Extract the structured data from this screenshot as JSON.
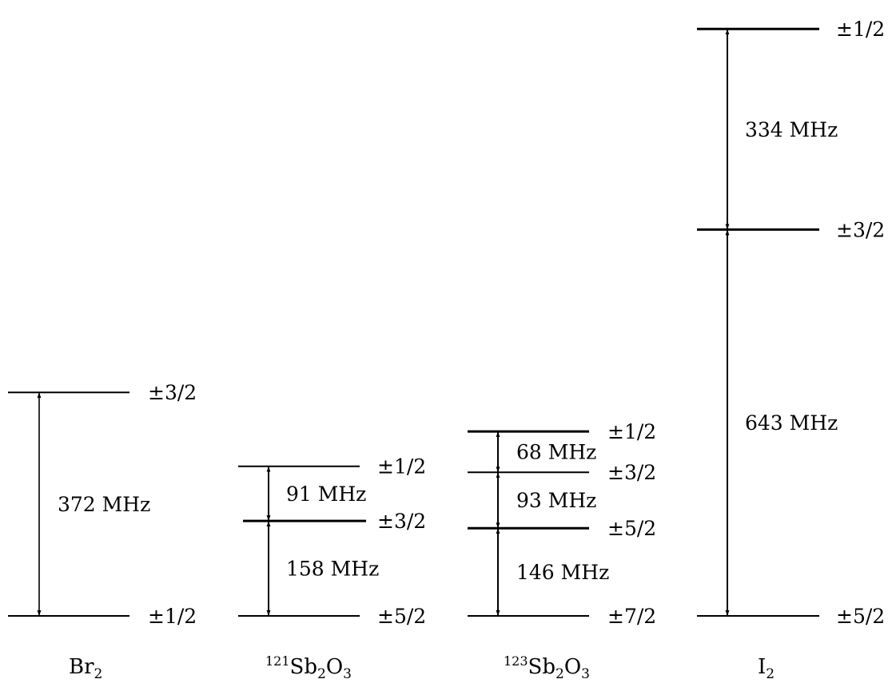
{
  "diagram": {
    "type": "nuclear-quadrupole-energy-levels",
    "unit": "MHz",
    "columns": [
      {
        "id": "br2",
        "name_parts": [
          {
            "text": "Br",
            "style": "main"
          },
          {
            "text": "2",
            "style": "sub"
          }
        ],
        "levels": [
          "±1/2",
          "±3/2"
        ],
        "transitions": [
          {
            "from": "±1/2",
            "to": "±3/2",
            "value": 372,
            "label": "372 MHz"
          }
        ]
      },
      {
        "id": "sb121",
        "name_parts": [
          {
            "text": "121",
            "style": "sup"
          },
          {
            "text": "Sb",
            "style": "main"
          },
          {
            "text": "2",
            "style": "sub"
          },
          {
            "text": "O",
            "style": "main"
          },
          {
            "text": "3",
            "style": "sub"
          }
        ],
        "levels": [
          "±5/2",
          "±3/2",
          "±1/2"
        ],
        "transitions": [
          {
            "from": "±5/2",
            "to": "±3/2",
            "value": 158,
            "label": "158 MHz"
          },
          {
            "from": "±3/2",
            "to": "±1/2",
            "value": 91,
            "label": "91 MHz"
          }
        ]
      },
      {
        "id": "sb123",
        "name_parts": [
          {
            "text": "123",
            "style": "sup"
          },
          {
            "text": "Sb",
            "style": "main"
          },
          {
            "text": "2",
            "style": "sub"
          },
          {
            "text": "O",
            "style": "main"
          },
          {
            "text": "3",
            "style": "sub"
          }
        ],
        "levels": [
          "±7/2",
          "±5/2",
          "±3/2",
          "±1/2"
        ],
        "transitions": [
          {
            "from": "±7/2",
            "to": "±5/2",
            "value": 146,
            "label": "146 MHz"
          },
          {
            "from": "±5/2",
            "to": "±3/2",
            "value": 93,
            "label": "93 MHz"
          },
          {
            "from": "±3/2",
            "to": "±1/2",
            "value": 68,
            "label": "68 MHz"
          }
        ]
      },
      {
        "id": "i2",
        "name_parts": [
          {
            "text": "I",
            "style": "main"
          },
          {
            "text": "2",
            "style": "sub"
          }
        ],
        "levels": [
          "±5/2",
          "±3/2",
          "±1/2"
        ],
        "transitions": [
          {
            "from": "±5/2",
            "to": "±3/2",
            "value": 643,
            "label": "643 MHz"
          },
          {
            "from": "±3/2",
            "to": "±1/2",
            "value": 334,
            "label": "334 MHz"
          }
        ]
      }
    ]
  }
}
